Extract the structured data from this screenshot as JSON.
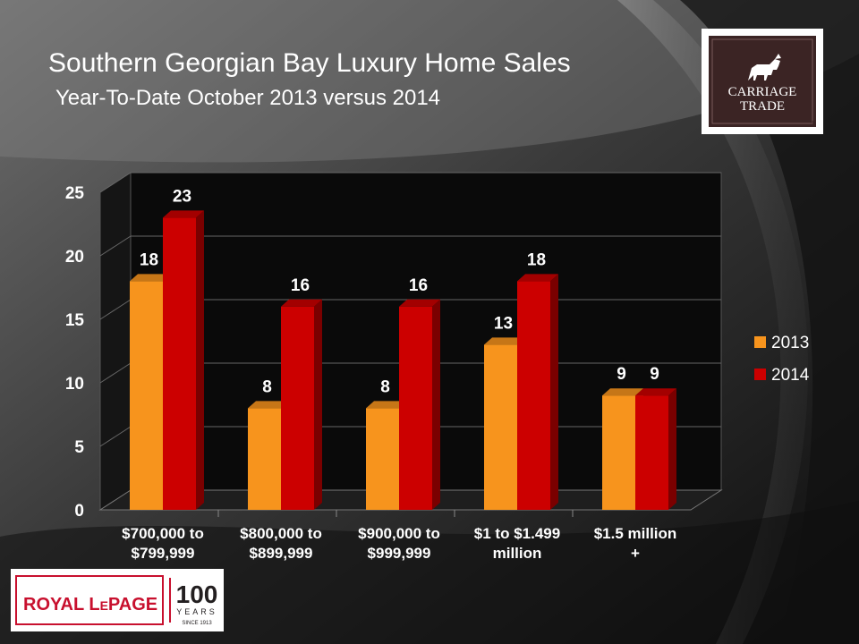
{
  "title": "Southern Georgian Bay Luxury Home Sales",
  "subtitle": "Year-To-Date October 2013 versus 2014",
  "logos": {
    "carriage_trade": {
      "line1": "CARRIAGE",
      "line2": "TRADE",
      "mark": "™"
    },
    "royal_lepage": {
      "brand_1": "ROYAL L",
      "brand_2": "E",
      "brand_3": "PAGE",
      "number": "100",
      "years": "YEARS",
      "since": "SINCE 1913"
    }
  },
  "colors": {
    "series_2013": "#f7941d",
    "series_2014": "#cc0000",
    "text": "#ffffff",
    "logo_red": "#c8102e",
    "logo_dark": "#231f20"
  },
  "chart_data": {
    "type": "bar",
    "style": "3d-clustered",
    "categories": [
      [
        "$700,000 to",
        "$799,999"
      ],
      [
        "$800,000 to",
        "$899,999"
      ],
      [
        "$900,000 to",
        "$999,999"
      ],
      [
        "$1 to $1.499",
        "million"
      ],
      [
        "$1.5 million",
        "+"
      ]
    ],
    "series": [
      {
        "name": "2013",
        "values": [
          18,
          8,
          8,
          13,
          9
        ]
      },
      {
        "name": "2014",
        "values": [
          23,
          16,
          16,
          18,
          9
        ]
      }
    ],
    "y_ticks": [
      "0",
      "5",
      "10",
      "15",
      "20",
      "25"
    ],
    "ylim": [
      0,
      25
    ],
    "grid": true,
    "data_labels": true,
    "legend_position": "right"
  }
}
